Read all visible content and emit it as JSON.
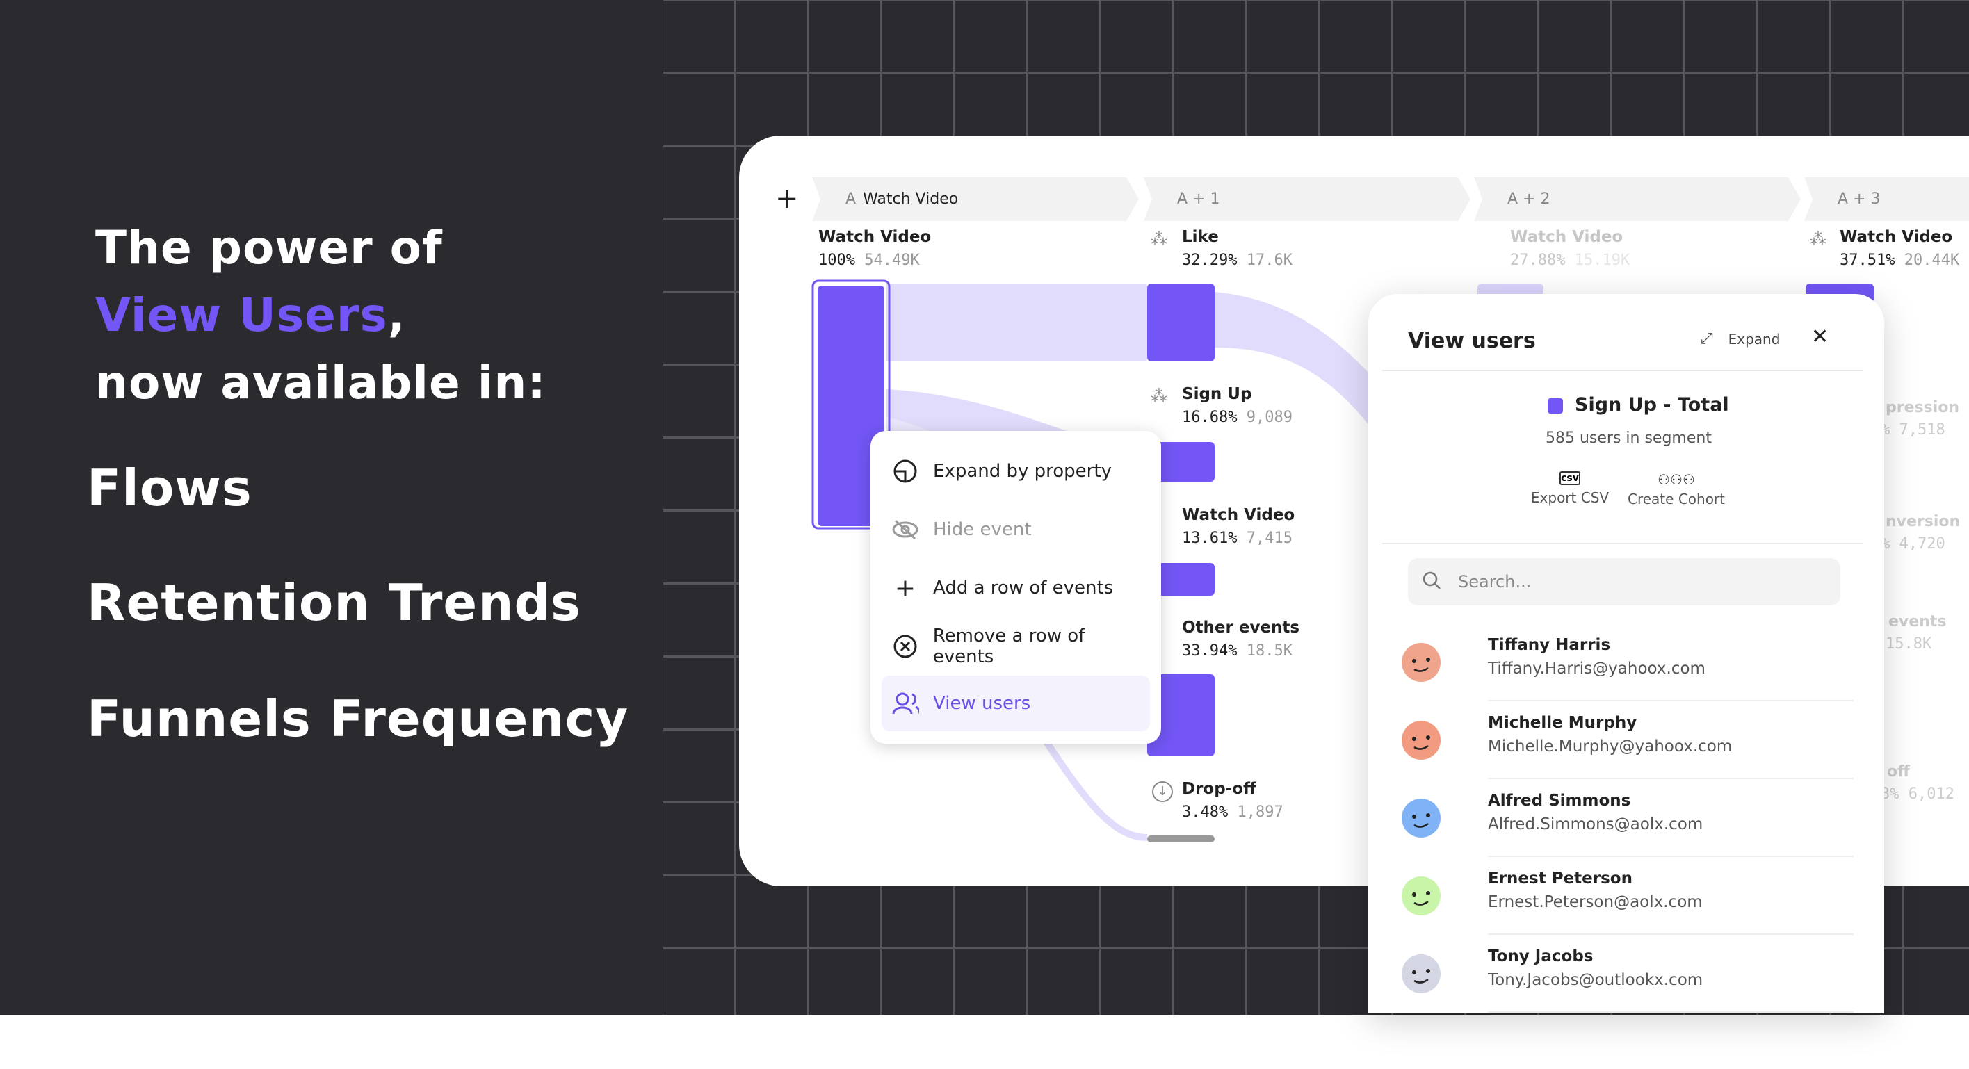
{
  "headline": {
    "line1": "The power of",
    "highlight": "View Users",
    "comma": ",",
    "line3": "now available in:"
  },
  "features": [
    "Flows",
    "Retention Trends",
    "Funnels Frequency"
  ],
  "colors": {
    "accent": "#7356f5",
    "background": "#2a2a2f",
    "flow": "#e1dcfb"
  },
  "flows": {
    "add_icon": "plus-icon",
    "columns": [
      {
        "prefix": "A",
        "label": "Watch Video"
      },
      {
        "label": "A + 1"
      },
      {
        "label": "A + 2"
      },
      {
        "label": "A + 3"
      }
    ],
    "col0": [
      {
        "name": "Watch Video",
        "pct": "100%",
        "count": "54.49K"
      }
    ],
    "col1": [
      {
        "name": "Like",
        "pct": "32.29%",
        "count": "17.6K"
      },
      {
        "name": "Sign Up",
        "pct": "16.68%",
        "count": "9,089"
      },
      {
        "name": "Watch Video",
        "pct": "13.61%",
        "count": "7,415"
      },
      {
        "name": "Other events",
        "pct": "33.94%",
        "count": "18.5K"
      },
      {
        "name": "Drop-off",
        "pct": "3.48%",
        "count": "1,897"
      }
    ],
    "col2": [
      {
        "name": "Watch Video",
        "pct": "27.88%",
        "count": "15.19K"
      }
    ],
    "col3": [
      {
        "name": "Watch Video",
        "pct": "37.51%",
        "count": "20.44K"
      }
    ],
    "col3_partial": [
      {
        "name": "pression",
        "val": "% 7,518"
      },
      {
        "name": "nversion",
        "val": "% 4,720"
      },
      {
        "name": "events",
        "val": "15.8K"
      },
      {
        "name": "off",
        "val": "3% 6,012"
      }
    ]
  },
  "menu": {
    "items": [
      {
        "label": "Expand by property",
        "icon": "expand-property-icon"
      },
      {
        "label": "Hide event",
        "icon": "eye-off-icon",
        "disabled": true
      },
      {
        "label": "Add a row of events",
        "icon": "plus-icon"
      },
      {
        "label": "Remove a row of events",
        "icon": "close-circle-icon"
      },
      {
        "label": "View users",
        "icon": "users-icon",
        "active": true
      }
    ]
  },
  "panel": {
    "title": "View users",
    "expand": "Expand",
    "segment": "Sign Up - Total",
    "segment_count": "585 users in segment",
    "export": "Export CSV",
    "cohort": "Create Cohort",
    "search_placeholder": "Search...",
    "users": [
      {
        "name": "Tiffany Harris",
        "email": "Tiffany.Harris@yahoox.com",
        "color": "#f0a48c"
      },
      {
        "name": "Michelle Murphy",
        "email": "Michelle.Murphy@yahoox.com",
        "color": "#f29b80"
      },
      {
        "name": "Alfred Simmons",
        "email": "Alfred.Simmons@aolx.com",
        "color": "#7fb3f5"
      },
      {
        "name": "Ernest Peterson",
        "email": "Ernest.Peterson@aolx.com",
        "color": "#c8f5a8"
      },
      {
        "name": "Tony Jacobs",
        "email": "Tony.Jacobs@outlookx.com",
        "color": "#d4d6e3"
      }
    ]
  }
}
